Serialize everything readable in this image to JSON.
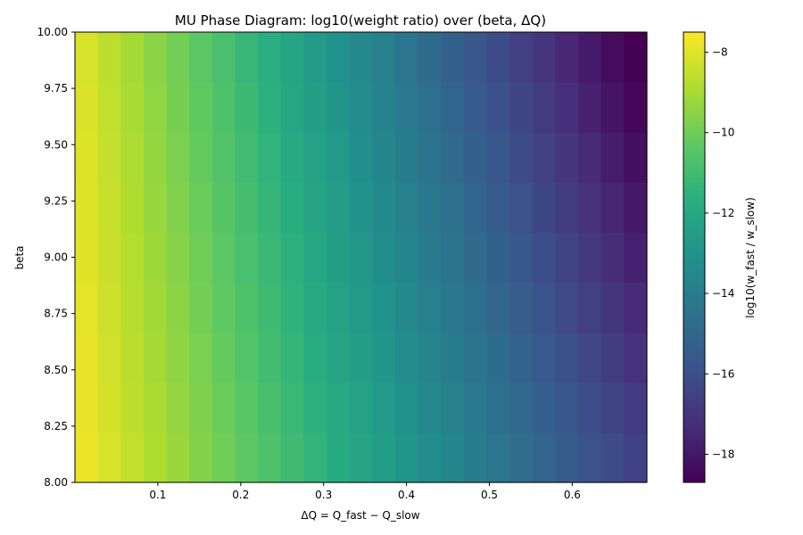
{
  "chart_data": {
    "type": "heatmap",
    "title": "MU Phase Diagram: log10(weight ratio) over (beta, ΔQ)",
    "xlabel": "ΔQ = Q_fast − Q_slow",
    "ylabel": "beta",
    "colorbar_label": "log10(w_fast / w_slow)",
    "colormap": "viridis",
    "xlim": [
      0.0,
      0.69
    ],
    "ylim": [
      8.0,
      10.0
    ],
    "x_ticks": [
      0.1,
      0.2,
      0.3,
      0.4,
      0.5,
      0.6
    ],
    "x_tick_labels": [
      "0.1",
      "0.2",
      "0.3",
      "0.4",
      "0.5",
      "0.6"
    ],
    "y_ticks": [
      8.0,
      8.25,
      8.5,
      8.75,
      9.0,
      9.25,
      9.5,
      9.75,
      10.0
    ],
    "y_tick_labels": [
      "8.00",
      "8.25",
      "8.50",
      "8.75",
      "9.00",
      "9.25",
      "9.50",
      "9.75",
      "10.00"
    ],
    "colorbar_range": [
      -18.7,
      -7.5
    ],
    "colorbar_ticks": [
      -8,
      -10,
      -12,
      -14,
      -16,
      -18
    ],
    "colorbar_tick_labels": [
      "−8",
      "−10",
      "−12",
      "−14",
      "−16",
      "−18"
    ],
    "grid": false,
    "x_centers_range": [
      0.0138,
      0.6762
    ],
    "x_count": 25,
    "y_centers_range": [
      8.1111,
      9.8889
    ],
    "y_count": 9,
    "value_model": "log10 ratio ≈ -7.6 - 0.18*(beta-8) - 13.0*ΔQ*(beta/8)"
  }
}
